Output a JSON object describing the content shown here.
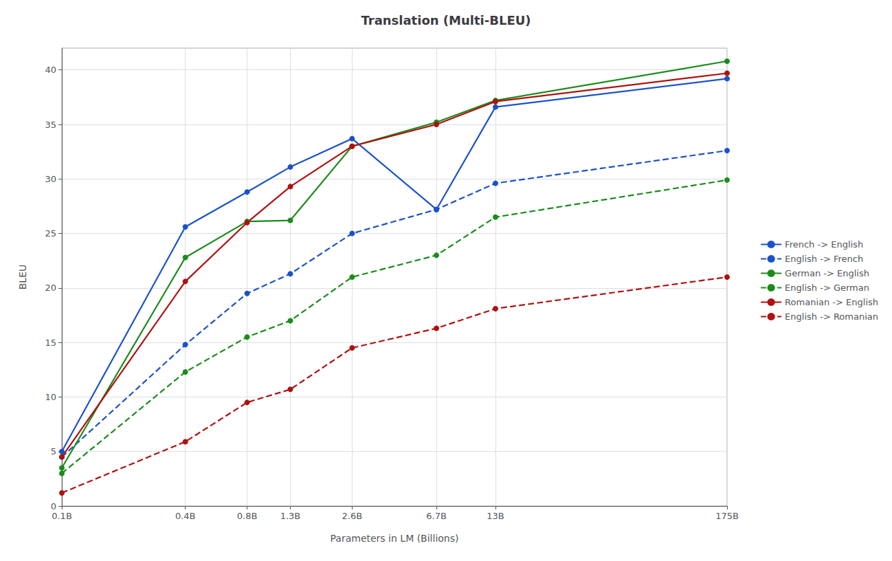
{
  "chart_data": {
    "type": "line",
    "title": "Translation (Multi-BLEU)",
    "xlabel": "Parameters in LM (Billions)",
    "ylabel": "BLEU",
    "log": "x",
    "x": [
      0.1,
      0.4,
      0.8,
      1.3,
      2.6,
      6.7,
      13,
      175
    ],
    "xlim": [
      0.1,
      175
    ],
    "xticks": [
      {
        "value": 0.1,
        "label": "0.1B"
      },
      {
        "value": 0.4,
        "label": "0.4B"
      },
      {
        "value": 0.8,
        "label": "0.8B"
      },
      {
        "value": 1.3,
        "label": "1.3B"
      },
      {
        "value": 2.6,
        "label": "2.6B"
      },
      {
        "value": 6.7,
        "label": "6.7B"
      },
      {
        "value": 13,
        "label": "13B"
      },
      {
        "value": 175,
        "label": "175B"
      }
    ],
    "ylim": [
      0,
      42
    ],
    "yticks": [
      0,
      5,
      10,
      15,
      20,
      25,
      30,
      35,
      40
    ],
    "grid": true,
    "legend": "right",
    "series": [
      {
        "name": "French -> English",
        "color": "#1a52c9",
        "line_style": "solid",
        "marker": "circle",
        "values": [
          5.0,
          25.6,
          28.8,
          31.1,
          33.7,
          27.2,
          36.6,
          39.2
        ]
      },
      {
        "name": "English -> French",
        "color": "#1a52c9",
        "line_style": "dashed",
        "marker": "circle",
        "values": [
          4.5,
          14.8,
          19.5,
          21.3,
          25.0,
          27.2,
          29.6,
          32.6
        ]
      },
      {
        "name": "German -> English",
        "color": "#1a8c1a",
        "line_style": "solid",
        "marker": "circle",
        "values": [
          3.5,
          22.8,
          26.1,
          26.2,
          33.0,
          35.2,
          37.2,
          40.8
        ]
      },
      {
        "name": "English -> German",
        "color": "#1a8c1a",
        "line_style": "dashed",
        "marker": "circle",
        "values": [
          3.0,
          12.3,
          15.5,
          17.0,
          21.0,
          23.0,
          26.5,
          29.9
        ]
      },
      {
        "name": "Romanian -> English",
        "color": "#b01010",
        "line_style": "solid",
        "marker": "circle",
        "values": [
          4.5,
          20.6,
          26.0,
          29.3,
          33.0,
          35.0,
          37.1,
          39.7
        ]
      },
      {
        "name": "English -> Romanian",
        "color": "#b01010",
        "line_style": "dashed",
        "marker": "circle",
        "values": [
          1.2,
          5.9,
          9.5,
          10.7,
          14.5,
          16.3,
          18.1,
          21.0
        ]
      }
    ]
  }
}
